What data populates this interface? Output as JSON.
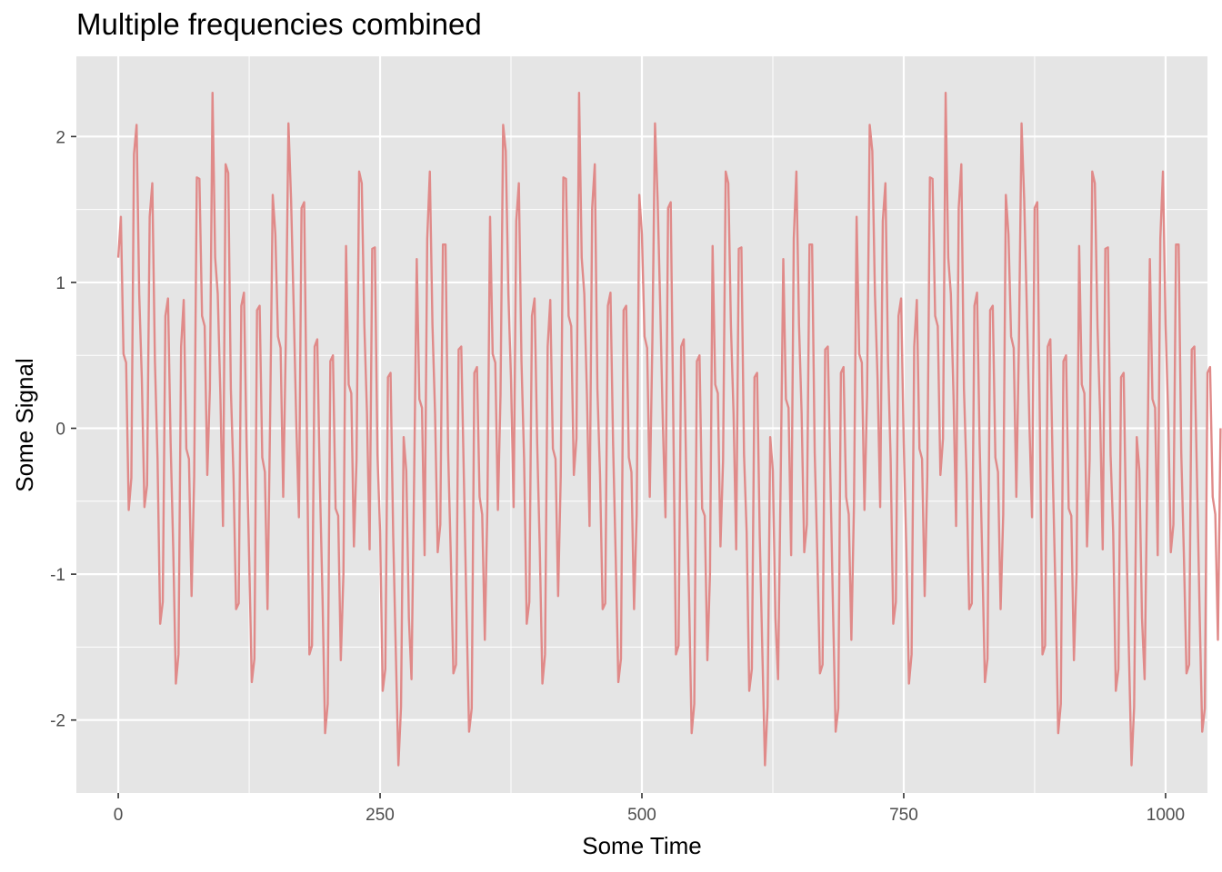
{
  "chart_data": {
    "type": "line",
    "title": "Multiple frequencies combined",
    "xlabel": "Some Time",
    "ylabel": "Some Signal",
    "xlim": [
      -40,
      1040
    ],
    "ylim": [
      -2.5,
      2.55
    ],
    "x_ticks": [
      0,
      250,
      500,
      750,
      1000
    ],
    "x_tick_labels": [
      "0",
      "250",
      "500",
      "750",
      "1000"
    ],
    "y_ticks": [
      -2,
      -1,
      0,
      1,
      2
    ],
    "y_tick_labels": [
      "-2",
      "-1",
      "0",
      "1",
      "2"
    ],
    "grid": true,
    "background": "#e5e5e5",
    "grid_color": "#ffffff",
    "line_color": "#e08a89",
    "series": [
      {
        "x_step": 2.5,
        "values": [
          1.17,
          1.45,
          0.51,
          0.45,
          -0.56,
          -0.34,
          1.88,
          2.08,
          0.92,
          0.34,
          -0.54,
          -0.39,
          1.45,
          1.68,
          0.46,
          -0.21,
          -1.34,
          -1.19,
          0.77,
          0.89,
          -0.1,
          -0.83,
          -1.75,
          -1.55,
          0.56,
          0.88,
          -0.14,
          -0.21,
          -1.15,
          -0.33,
          1.72,
          1.71,
          0.77,
          0.7,
          -0.32,
          0.27,
          2.3,
          1.17,
          0.92,
          0.23,
          -0.67,
          1.81,
          1.75,
          0.27,
          -0.32,
          -1.24,
          -1.2,
          0.84,
          0.93,
          -0.11,
          -0.89,
          -1.74,
          -1.58,
          0.81,
          0.84,
          -0.2,
          -0.3,
          -1.24,
          0.07,
          1.6,
          1.33,
          0.63,
          0.55,
          -0.47,
          0.6,
          2.09,
          1.57,
          0.83,
          0.03,
          -0.61,
          1.51,
          1.55,
          0.04,
          -1.55,
          -1.49,
          0.56,
          0.61,
          -0.37,
          -1.15,
          -2.09,
          -1.89,
          0.46,
          0.5,
          -0.55,
          -0.6,
          -1.59,
          -1.0,
          1.25,
          0.3,
          0.24,
          -0.81,
          -0.22,
          1.76,
          1.68,
          0.7,
          0.1,
          -0.83,
          1.23,
          1.24,
          -0.18,
          -0.71,
          -1.8,
          -1.65,
          0.35,
          0.38,
          -0.73,
          -1.53,
          -2.31,
          -1.91,
          -0.06,
          -0.29,
          -1.3,
          -1.72,
          -0.35,
          1.16,
          0.2,
          0.14,
          -0.87,
          1.3,
          1.76,
          0.71,
          0.1,
          -0.85,
          -0.66,
          1.26,
          1.26,
          -0.17,
          -0.87,
          -1.68,
          -1.62,
          0.54,
          0.56,
          -0.34,
          -1.25,
          -2.08,
          -1.92,
          0.38,
          0.42,
          -0.47,
          -0.59,
          -1.45,
          -0.52,
          1.45,
          0.51,
          0.45,
          -0.56,
          0.23,
          2.08,
          1.9,
          0.92,
          0.34,
          -0.54,
          1.42,
          1.68,
          0.46,
          -0.21,
          -1.34,
          -1.19,
          0.77,
          0.89,
          -0.1,
          -0.83,
          -1.75,
          -1.55,
          0.56,
          0.88,
          -0.14,
          -0.21,
          -1.15,
          -0.33,
          1.72,
          1.71,
          0.77,
          0.7,
          -0.32,
          -0.07,
          2.3,
          1.17,
          0.92,
          0.23,
          -0.67,
          1.51,
          1.81,
          0.27,
          -0.32,
          -1.24,
          -1.2,
          0.84,
          0.93,
          -0.11,
          -0.89,
          -1.74,
          -1.58,
          0.81,
          0.84,
          -0.2,
          -0.3,
          -1.24,
          -0.59,
          1.6,
          1.33,
          0.63,
          0.55,
          -0.47,
          0.6,
          2.09,
          1.57,
          0.83,
          0.03,
          -0.61,
          1.51,
          1.55,
          0.04,
          -1.55,
          -1.49,
          0.56,
          0.61,
          -0.37,
          -1.15,
          -2.09,
          -1.89,
          0.46,
          0.5,
          -0.55,
          -0.6,
          -1.59,
          -1.0,
          1.25,
          0.3,
          0.24,
          -0.81,
          -0.22,
          1.76,
          1.68,
          0.7,
          0.1,
          -0.83,
          1.23,
          1.24,
          -0.18,
          -0.71,
          -1.8,
          -1.65,
          0.35,
          0.38,
          -0.73,
          -1.53,
          -2.31,
          -1.91,
          -0.06,
          -0.29,
          -1.3,
          -1.72,
          -0.35,
          1.16,
          0.2,
          0.14,
          -0.87,
          1.3,
          1.76,
          0.71,
          0.1,
          -0.85,
          -0.66,
          1.26,
          1.26,
          -0.17,
          -0.87,
          -1.68,
          -1.62,
          0.54,
          0.56,
          -0.34,
          -1.25,
          -2.08,
          -1.92,
          0.38,
          0.42,
          -0.47,
          -0.59,
          -1.45,
          -0.52,
          1.45,
          0.51,
          0.45,
          -0.56,
          0.23,
          2.08,
          1.9,
          0.92,
          0.34,
          -0.54,
          1.42,
          1.68,
          0.46,
          -0.21,
          -1.34,
          -1.19,
          0.77,
          0.89,
          -0.1,
          -0.83,
          -1.75,
          -1.55,
          0.56,
          0.88,
          -0.14,
          -0.21,
          -1.15,
          -0.33,
          1.72,
          1.71,
          0.77,
          0.7,
          -0.32,
          -0.07,
          2.3,
          1.17,
          0.92,
          0.23,
          -0.67,
          1.51,
          1.81,
          0.27,
          -0.32,
          -1.24,
          -1.2,
          0.84,
          0.93,
          -0.11,
          -0.89,
          -1.74,
          -1.58,
          0.81,
          0.84,
          -0.2,
          -0.3,
          -1.24,
          -0.59,
          1.6,
          1.33,
          0.63,
          0.55,
          -0.47,
          0.6,
          2.09,
          1.57,
          0.83,
          0.03,
          -0.61,
          1.51,
          1.55,
          0.04,
          -1.55,
          -1.49,
          0.56,
          0.61,
          -0.37,
          -1.15,
          -2.09,
          -1.89,
          0.46,
          0.5,
          -0.55,
          -0.6,
          -1.59,
          -1.0,
          1.25,
          0.3,
          0.24,
          -0.81,
          -0.22,
          1.76,
          1.68,
          0.7,
          0.1,
          -0.83,
          1.23,
          1.24,
          -0.18,
          -0.71,
          -1.8,
          -1.65,
          0.35,
          0.38,
          -0.73,
          -1.53,
          -2.31,
          -1.91,
          -0.06,
          -0.29,
          -1.3,
          -1.72,
          -0.35,
          1.16,
          0.2,
          0.14,
          -0.87,
          1.3,
          1.76,
          0.71,
          0.1,
          -0.85,
          -0.66,
          1.26,
          1.26,
          -0.17,
          -0.87,
          -1.68,
          -1.62,
          0.54,
          0.56,
          -0.34,
          -1.25,
          -2.08,
          -1.92,
          0.38,
          0.42,
          -0.47,
          -0.59,
          -1.45,
          0.0
        ]
      }
    ]
  }
}
